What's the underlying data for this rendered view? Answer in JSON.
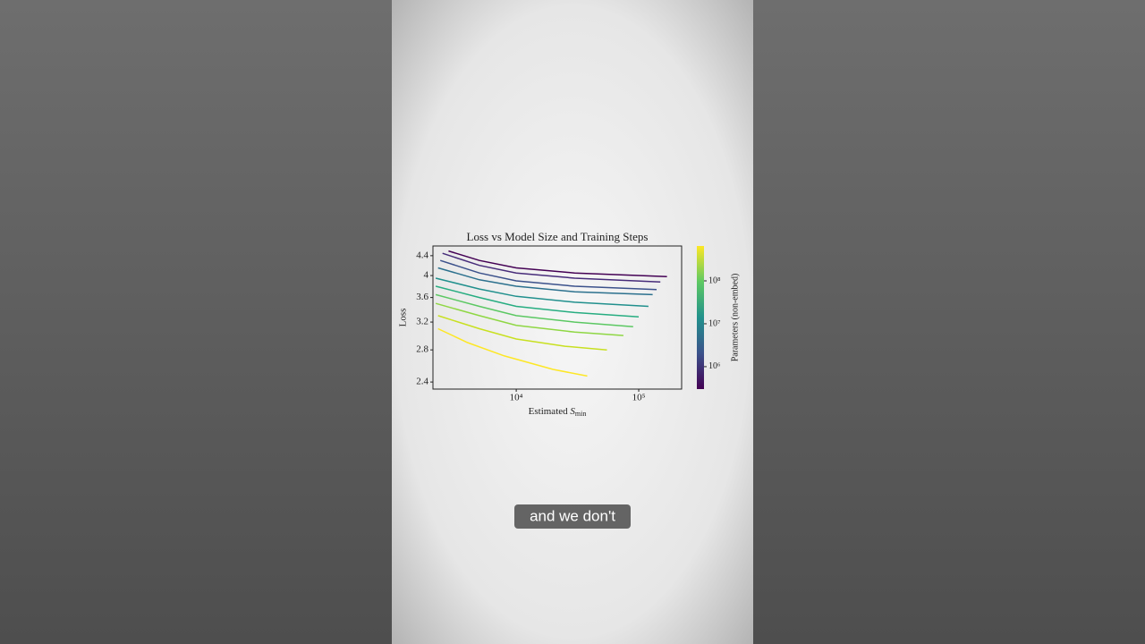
{
  "chart_data": {
    "type": "line",
    "title": "Loss vs Model Size and Training Steps",
    "xlabel": [
      "Estimated ",
      "S",
      "min"
    ],
    "ylabel": "Loss",
    "xscale": "log",
    "yscale": "log",
    "xlim": [
      2090,
      224000
    ],
    "ylim": [
      2.32,
      4.61
    ],
    "xticks": [
      {
        "value": 10000,
        "label": "10⁴"
      },
      {
        "value": 100000,
        "label": "10⁵"
      }
    ],
    "yticks": [
      2.4,
      2.8,
      3.2,
      3.6,
      4.0,
      4.4
    ],
    "series": [
      {
        "color": "#440154",
        "x": [
          2800,
          5000,
          10000,
          30000,
          170000
        ],
        "values": [
          4.5,
          4.3,
          4.15,
          4.05,
          3.98
        ]
      },
      {
        "color": "#472c7a",
        "x": [
          2500,
          5000,
          10000,
          30000,
          150000
        ],
        "values": [
          4.45,
          4.2,
          4.05,
          3.95,
          3.88
        ]
      },
      {
        "color": "#3b518b",
        "x": [
          2400,
          5000,
          10000,
          30000,
          140000
        ],
        "values": [
          4.3,
          4.05,
          3.9,
          3.8,
          3.74
        ]
      },
      {
        "color": "#2c718e",
        "x": [
          2300,
          5000,
          10000,
          30000,
          130000
        ],
        "values": [
          4.15,
          3.92,
          3.8,
          3.7,
          3.65
        ]
      },
      {
        "color": "#21908d",
        "x": [
          2200,
          5000,
          10000,
          30000,
          120000
        ],
        "values": [
          3.95,
          3.75,
          3.62,
          3.52,
          3.45
        ]
      },
      {
        "color": "#27ad81",
        "x": [
          2200,
          5000,
          10000,
          30000,
          100000
        ],
        "values": [
          3.8,
          3.6,
          3.45,
          3.35,
          3.28
        ]
      },
      {
        "color": "#5cc863",
        "x": [
          2200,
          5000,
          10000,
          30000,
          90000
        ],
        "values": [
          3.65,
          3.45,
          3.3,
          3.2,
          3.13
        ]
      },
      {
        "color": "#8fd744",
        "x": [
          2200,
          5000,
          10000,
          30000,
          75000
        ],
        "values": [
          3.5,
          3.3,
          3.15,
          3.05,
          3.0
        ]
      },
      {
        "color": "#c8e020",
        "x": [
          2300,
          5000,
          10000,
          25000,
          55000
        ],
        "values": [
          3.3,
          3.1,
          2.95,
          2.85,
          2.8
        ]
      },
      {
        "color": "#fde725",
        "x": [
          2300,
          4000,
          8000,
          20000,
          38000
        ],
        "values": [
          3.1,
          2.9,
          2.72,
          2.55,
          2.47
        ]
      }
    ],
    "colorbar": {
      "label": "Parameters (non-embed)",
      "scale": "log",
      "lim": [
        300000,
        650000000
      ],
      "ticks": [
        {
          "value": 1000000,
          "label": "10⁶"
        },
        {
          "value": 10000000,
          "label": "10⁷"
        },
        {
          "value": 100000000,
          "label": "10⁸"
        }
      ]
    }
  },
  "caption": "and we don't"
}
